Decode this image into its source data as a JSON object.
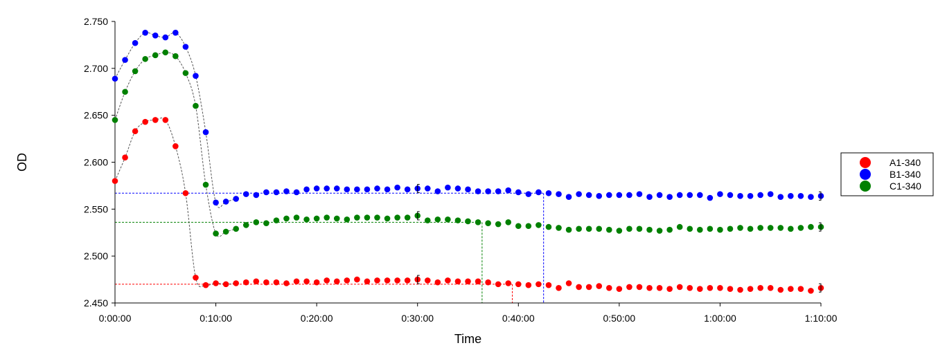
{
  "chart_data": {
    "type": "scatter",
    "xlabel": "Time",
    "ylabel": "OD",
    "xlim": [
      0,
      70
    ],
    "ylim": [
      2.45,
      2.75
    ],
    "x_ticks": [
      0,
      10,
      20,
      30,
      40,
      50,
      60,
      70
    ],
    "x_tick_labels": [
      "0:00:00",
      "0:10:00",
      "0:20:00",
      "0:30:00",
      "0:40:00",
      "0:50:00",
      "1:00:00",
      "1:10:00"
    ],
    "y_ticks": [
      2.45,
      2.5,
      2.55,
      2.6,
      2.65,
      2.7,
      2.75
    ],
    "y_tick_labels": [
      "2.450",
      "2.500",
      "2.550",
      "2.600",
      "2.650",
      "2.700",
      "2.750"
    ],
    "legend_position": "right",
    "x_unit": "minutes",
    "series": [
      {
        "name": "A1-340",
        "color": "#ff0000",
        "x": [
          0,
          1,
          2,
          3,
          4,
          5,
          6,
          7,
          8,
          9,
          10,
          11,
          12,
          13,
          14,
          15,
          16,
          17,
          18,
          19,
          20,
          21,
          22,
          23,
          24,
          25,
          26,
          27,
          28,
          29,
          30,
          31,
          32,
          33,
          34,
          35,
          36,
          37,
          38,
          39,
          40,
          41,
          42,
          43,
          44,
          45,
          46,
          47,
          48,
          49,
          50,
          51,
          52,
          53,
          54,
          55,
          56,
          57,
          58,
          59,
          60,
          61,
          62,
          63,
          64,
          65,
          66,
          67,
          68,
          69,
          70
        ],
        "values": [
          2.58,
          2.605,
          2.633,
          2.643,
          2.645,
          2.645,
          2.617,
          2.567,
          2.477,
          2.469,
          2.471,
          2.47,
          2.471,
          2.472,
          2.473,
          2.472,
          2.472,
          2.471,
          2.473,
          2.473,
          2.472,
          2.474,
          2.473,
          2.474,
          2.475,
          2.473,
          2.474,
          2.474,
          2.474,
          2.474,
          2.475,
          2.474,
          2.472,
          2.474,
          2.473,
          2.473,
          2.473,
          2.472,
          2.47,
          2.471,
          2.47,
          2.469,
          2.47,
          2.469,
          2.466,
          2.471,
          2.467,
          2.467,
          2.468,
          2.466,
          2.465,
          2.467,
          2.467,
          2.466,
          2.466,
          2.465,
          2.467,
          2.466,
          2.465,
          2.466,
          2.466,
          2.465,
          2.464,
          2.465,
          2.466,
          2.466,
          2.464,
          2.465,
          2.465,
          2.463,
          2.466
        ],
        "plateau": 2.47,
        "marker_time": 39.4
      },
      {
        "name": "B1-340",
        "color": "#0000ff",
        "x": [
          0,
          1,
          2,
          3,
          4,
          5,
          6,
          7,
          8,
          9,
          10,
          11,
          12,
          13,
          14,
          15,
          16,
          17,
          18,
          19,
          20,
          21,
          22,
          23,
          24,
          25,
          26,
          27,
          28,
          29,
          30,
          31,
          32,
          33,
          34,
          35,
          36,
          37,
          38,
          39,
          40,
          41,
          42,
          43,
          44,
          45,
          46,
          47,
          48,
          49,
          50,
          51,
          52,
          53,
          54,
          55,
          56,
          57,
          58,
          59,
          60,
          61,
          62,
          63,
          64,
          65,
          66,
          67,
          68,
          69,
          70
        ],
        "values": [
          2.689,
          2.709,
          2.727,
          2.738,
          2.735,
          2.733,
          2.738,
          2.723,
          2.692,
          2.632,
          2.557,
          2.558,
          2.561,
          2.566,
          2.565,
          2.568,
          2.568,
          2.569,
          2.568,
          2.571,
          2.572,
          2.572,
          2.572,
          2.571,
          2.571,
          2.571,
          2.572,
          2.571,
          2.573,
          2.571,
          2.572,
          2.572,
          2.569,
          2.573,
          2.572,
          2.571,
          2.569,
          2.569,
          2.569,
          2.57,
          2.568,
          2.566,
          2.568,
          2.567,
          2.566,
          2.563,
          2.566,
          2.565,
          2.564,
          2.565,
          2.565,
          2.565,
          2.566,
          2.563,
          2.565,
          2.563,
          2.565,
          2.565,
          2.565,
          2.562,
          2.566,
          2.565,
          2.564,
          2.564,
          2.565,
          2.566,
          2.563,
          2.564,
          2.564,
          2.563,
          2.564
        ],
        "plateau": 2.567,
        "marker_time": 42.5
      },
      {
        "name": "C1-340",
        "color": "#008000",
        "x": [
          0,
          1,
          2,
          3,
          4,
          5,
          6,
          7,
          8,
          9,
          10,
          11,
          12,
          13,
          14,
          15,
          16,
          17,
          18,
          19,
          20,
          21,
          22,
          23,
          24,
          25,
          26,
          27,
          28,
          29,
          30,
          31,
          32,
          33,
          34,
          35,
          36,
          37,
          38,
          39,
          40,
          41,
          42,
          43,
          44,
          45,
          46,
          47,
          48,
          49,
          50,
          51,
          52,
          53,
          54,
          55,
          56,
          57,
          58,
          59,
          60,
          61,
          62,
          63,
          64,
          65,
          66,
          67,
          68,
          69,
          70
        ],
        "values": [
          2.645,
          2.675,
          2.697,
          2.71,
          2.714,
          2.717,
          2.713,
          2.695,
          2.66,
          2.576,
          2.524,
          2.526,
          2.529,
          2.533,
          2.536,
          2.535,
          2.538,
          2.54,
          2.541,
          2.539,
          2.54,
          2.541,
          2.54,
          2.539,
          2.541,
          2.541,
          2.541,
          2.54,
          2.541,
          2.541,
          2.543,
          2.538,
          2.539,
          2.539,
          2.538,
          2.537,
          2.536,
          2.535,
          2.534,
          2.536,
          2.532,
          2.532,
          2.533,
          2.531,
          2.53,
          2.528,
          2.529,
          2.529,
          2.529,
          2.528,
          2.527,
          2.529,
          2.529,
          2.528,
          2.527,
          2.528,
          2.531,
          2.529,
          2.528,
          2.529,
          2.528,
          2.529,
          2.53,
          2.529,
          2.53,
          2.53,
          2.53,
          2.529,
          2.53,
          2.531,
          2.531
        ],
        "plateau": 2.536,
        "marker_time": 36.4
      }
    ]
  }
}
